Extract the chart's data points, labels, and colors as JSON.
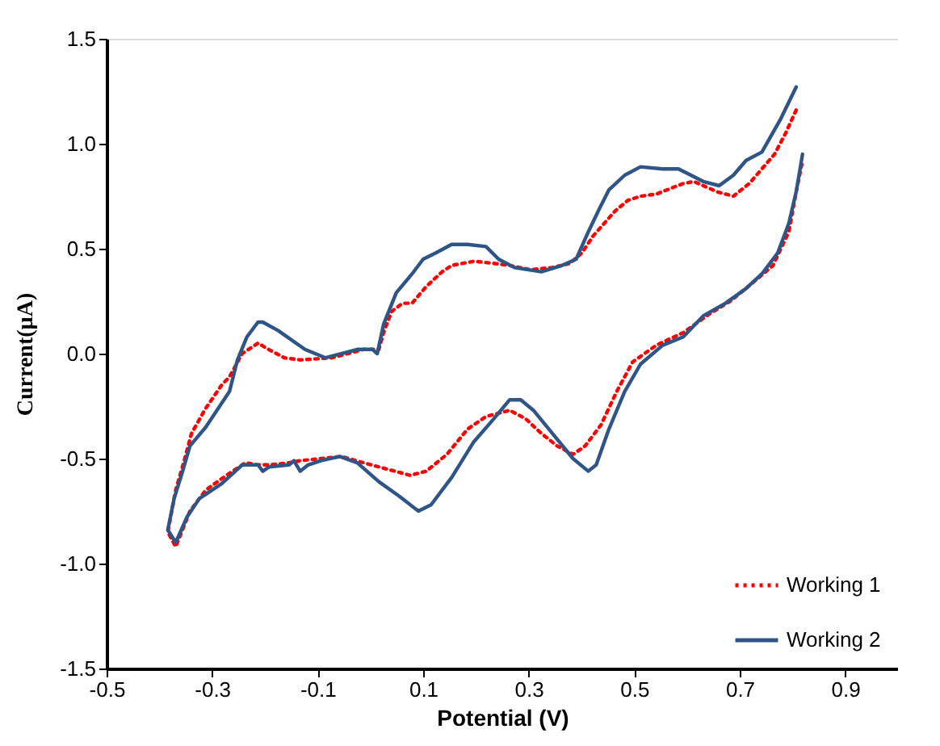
{
  "chart_data": {
    "type": "line",
    "xlabel": "Potential (V)",
    "ylabel": "Current(µA)",
    "xlim": [
      -0.5,
      1.0
    ],
    "xticks": [
      -0.5,
      -0.3,
      -0.1,
      0.1,
      0.3,
      0.5,
      0.7,
      0.9
    ],
    "ylim": [
      -1.5,
      1.5
    ],
    "yticks": [
      -1.5,
      {
        "value": -1,
        "label": "-1.0"
      },
      -0.5,
      {
        "value": 0,
        "label": "0.0"
      },
      0.5,
      {
        "value": 1,
        "label": "1.0"
      },
      1.5
    ],
    "grid": false,
    "legend": "bottom right",
    "marker": "none",
    "series": [
      {
        "name": "Working 1",
        "color": "#ff0000",
        "line_style": "dotted",
        "x": [
          0.807,
          0.787,
          0.766,
          0.742,
          0.718,
          0.688,
          0.658,
          0.631,
          0.613,
          0.593,
          0.572,
          0.542,
          0.512,
          0.488,
          0.464,
          0.443,
          0.422,
          0.401,
          0.378,
          0.345,
          0.303,
          0.264,
          0.234,
          0.196,
          0.154,
          0.136,
          0.106,
          0.079,
          0.061,
          0.04,
          0.025,
          0.016,
          -0.013,
          -0.073,
          -0.133,
          -0.163,
          -0.193,
          -0.213,
          -0.243,
          -0.267,
          -0.282,
          -0.312,
          -0.339,
          -0.354,
          -0.369,
          -0.384,
          -0.369,
          -0.342,
          -0.312,
          -0.273,
          -0.237,
          -0.213,
          -0.193,
          -0.154,
          -0.133,
          -0.094,
          -0.055,
          -0.013,
          0.031,
          0.076,
          0.106,
          0.145,
          0.184,
          0.219,
          0.264,
          0.294,
          0.324,
          0.354,
          0.384,
          0.407,
          0.437,
          0.467,
          0.497,
          0.542,
          0.593,
          0.643,
          0.682,
          0.721,
          0.763,
          0.793,
          0.807,
          0.819
        ],
        "values": [
          1.16,
          1.05,
          0.95,
          0.88,
          0.81,
          0.75,
          0.77,
          0.8,
          0.82,
          0.81,
          0.79,
          0.76,
          0.75,
          0.73,
          0.68,
          0.62,
          0.56,
          0.48,
          0.43,
          0.41,
          0.4,
          0.42,
          0.43,
          0.44,
          0.42,
          0.39,
          0.32,
          0.24,
          0.24,
          0.2,
          0.1,
          0.02,
          0.02,
          -0.02,
          -0.03,
          -0.02,
          0.02,
          0.05,
          0.0,
          -0.11,
          -0.15,
          -0.26,
          -0.38,
          -0.52,
          -0.65,
          -0.85,
          -0.92,
          -0.75,
          -0.65,
          -0.58,
          -0.52,
          -0.53,
          -0.53,
          -0.52,
          -0.51,
          -0.5,
          -0.49,
          -0.52,
          -0.55,
          -0.58,
          -0.56,
          -0.48,
          -0.36,
          -0.3,
          -0.27,
          -0.31,
          -0.38,
          -0.44,
          -0.48,
          -0.44,
          -0.34,
          -0.18,
          -0.04,
          0.04,
          0.1,
          0.19,
          0.25,
          0.33,
          0.42,
          0.58,
          0.77,
          0.92
        ]
      },
      {
        "name": "Working 2",
        "color": "#2f5587",
        "line_style": "solid",
        "x": [
          0.807,
          0.778,
          0.742,
          0.712,
          0.688,
          0.661,
          0.631,
          0.584,
          0.554,
          0.512,
          0.482,
          0.452,
          0.434,
          0.413,
          0.39,
          0.363,
          0.324,
          0.273,
          0.243,
          0.219,
          0.184,
          0.154,
          0.124,
          0.1,
          0.079,
          0.049,
          0.025,
          0.013,
          0.004,
          -0.025,
          -0.085,
          -0.124,
          -0.175,
          -0.204,
          -0.213,
          -0.234,
          -0.252,
          -0.267,
          -0.312,
          -0.342,
          -0.357,
          -0.372,
          -0.384,
          -0.369,
          -0.348,
          -0.324,
          -0.282,
          -0.243,
          -0.213,
          -0.204,
          -0.192,
          -0.154,
          -0.145,
          -0.133,
          -0.118,
          -0.094,
          -0.058,
          -0.025,
          0.016,
          0.055,
          0.091,
          0.115,
          0.154,
          0.196,
          0.234,
          0.264,
          0.285,
          0.309,
          0.345,
          0.384,
          0.413,
          0.428,
          0.452,
          0.482,
          0.512,
          0.554,
          0.593,
          0.631,
          0.673,
          0.712,
          0.742,
          0.772,
          0.793,
          0.807,
          0.819
        ],
        "values": [
          1.27,
          1.12,
          0.96,
          0.92,
          0.85,
          0.8,
          0.82,
          0.88,
          0.88,
          0.89,
          0.85,
          0.78,
          0.69,
          0.58,
          0.45,
          0.42,
          0.39,
          0.41,
          0.45,
          0.51,
          0.52,
          0.52,
          0.48,
          0.45,
          0.38,
          0.29,
          0.14,
          0.0,
          0.02,
          0.02,
          -0.02,
          0.02,
          0.11,
          0.15,
          0.15,
          0.08,
          -0.03,
          -0.18,
          -0.35,
          -0.44,
          -0.57,
          -0.69,
          -0.84,
          -0.9,
          -0.78,
          -0.69,
          -0.62,
          -0.53,
          -0.53,
          -0.56,
          -0.54,
          -0.53,
          -0.51,
          -0.56,
          -0.53,
          -0.51,
          -0.49,
          -0.52,
          -0.61,
          -0.68,
          -0.75,
          -0.72,
          -0.59,
          -0.42,
          -0.31,
          -0.22,
          -0.22,
          -0.27,
          -0.38,
          -0.5,
          -0.56,
          -0.53,
          -0.36,
          -0.18,
          -0.05,
          0.04,
          0.08,
          0.18,
          0.24,
          0.31,
          0.38,
          0.48,
          0.62,
          0.77,
          0.95
        ]
      }
    ]
  }
}
